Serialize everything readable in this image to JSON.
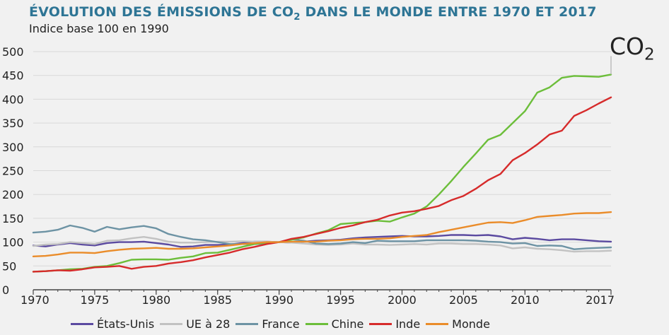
{
  "title": {
    "main": "ÉVOLUTION DES ÉMISSIONS DE CO",
    "sub": "2",
    "after": " DANS LE MONDE ENTRE 1970 ET 2017"
  },
  "subtitle": "Indice base 100 en 1990",
  "corner_label": {
    "main": "CO",
    "sub": "2"
  },
  "chart_data": {
    "type": "line",
    "ylim": [
      0,
      500
    ],
    "xlim": [
      1970,
      2017
    ],
    "y_ticks": [
      "0",
      "50",
      "100",
      "150",
      "200",
      "250",
      "300",
      "350",
      "400",
      "450",
      "500"
    ],
    "x_ticks": [
      "1970",
      "1975",
      "1980",
      "1985",
      "1990",
      "1995",
      "2000",
      "2005",
      "2010",
      "2017"
    ],
    "grid": "horizontal",
    "legend_position": "bottom",
    "x": [
      1970,
      1971,
      1972,
      1973,
      1974,
      1975,
      1976,
      1977,
      1978,
      1979,
      1980,
      1981,
      1982,
      1983,
      1984,
      1985,
      1986,
      1987,
      1988,
      1989,
      1990,
      1991,
      1992,
      1993,
      1994,
      1995,
      1996,
      1997,
      1998,
      1999,
      2000,
      2001,
      2002,
      2003,
      2004,
      2005,
      2006,
      2007,
      2008,
      2009,
      2010,
      2011,
      2012,
      2013,
      2014,
      2015,
      2016,
      2017
    ],
    "series": [
      {
        "name": "États-Unis",
        "color": "#5b4aa0",
        "values": [
          93,
          91,
          95,
          98,
          95,
          93,
          98,
          100,
          100,
          101,
          98,
          95,
          90,
          91,
          94,
          94,
          95,
          98,
          101,
          101,
          100,
          99,
          101,
          103,
          104,
          105,
          108,
          110,
          111,
          112,
          113,
          112,
          112,
          113,
          115,
          115,
          114,
          115,
          112,
          106,
          109,
          107,
          104,
          106,
          106,
          104,
          102,
          101
        ]
      },
      {
        "name": "UE à 28",
        "color": "#c2c2c2",
        "values": [
          92,
          95,
          96,
          100,
          98,
          96,
          103,
          104,
          108,
          111,
          107,
          101,
          99,
          99,
          100,
          101,
          101,
          102,
          101,
          101,
          100,
          99,
          97,
          95,
          94,
          95,
          97,
          95,
          95,
          94,
          95,
          96,
          95,
          97,
          97,
          96,
          96,
          95,
          93,
          87,
          89,
          86,
          85,
          83,
          80,
          81,
          81,
          82
        ]
      },
      {
        "name": "France",
        "color": "#6d93a4",
        "values": [
          120,
          122,
          126,
          135,
          130,
          122,
          132,
          127,
          131,
          134,
          129,
          117,
          111,
          106,
          104,
          100,
          96,
          96,
          96,
          97,
          100,
          106,
          103,
          97,
          96,
          97,
          100,
          98,
          103,
          102,
          102,
          102,
          104,
          104,
          104,
          104,
          103,
          101,
          100,
          97,
          98,
          92,
          93,
          92,
          85,
          87,
          88,
          89
        ]
      },
      {
        "name": "Chine",
        "color": "#6cbe3a",
        "values": [
          38,
          39,
          41,
          43,
          44,
          48,
          50,
          56,
          63,
          64,
          64,
          63,
          67,
          70,
          77,
          78,
          84,
          90,
          96,
          99,
          100,
          105,
          110,
          118,
          125,
          138,
          140,
          142,
          145,
          143,
          152,
          160,
          175,
          200,
          228,
          258,
          286,
          315,
          325,
          350,
          375,
          414,
          425,
          445,
          449,
          448,
          447,
          452
        ]
      },
      {
        "name": "Inde",
        "color": "#d62b2b",
        "values": [
          38,
          39,
          41,
          40,
          43,
          47,
          48,
          50,
          44,
          48,
          50,
          55,
          58,
          62,
          68,
          73,
          78,
          85,
          90,
          96,
          100,
          107,
          111,
          117,
          123,
          130,
          135,
          142,
          147,
          156,
          162,
          165,
          170,
          176,
          188,
          197,
          212,
          230,
          243,
          272,
          287,
          305,
          326,
          334,
          365,
          377,
          391,
          404
        ]
      },
      {
        "name": "Monde",
        "color": "#ea8c2a",
        "values": [
          70,
          71,
          74,
          78,
          78,
          77,
          81,
          84,
          86,
          87,
          88,
          86,
          86,
          87,
          89,
          91,
          93,
          96,
          98,
          100,
          100,
          101,
          101,
          101,
          103,
          104,
          106,
          107,
          107,
          108,
          111,
          113,
          115,
          121,
          126,
          131,
          136,
          141,
          142,
          140,
          146,
          153,
          155,
          157,
          160,
          161,
          161,
          163
        ]
      }
    ]
  }
}
